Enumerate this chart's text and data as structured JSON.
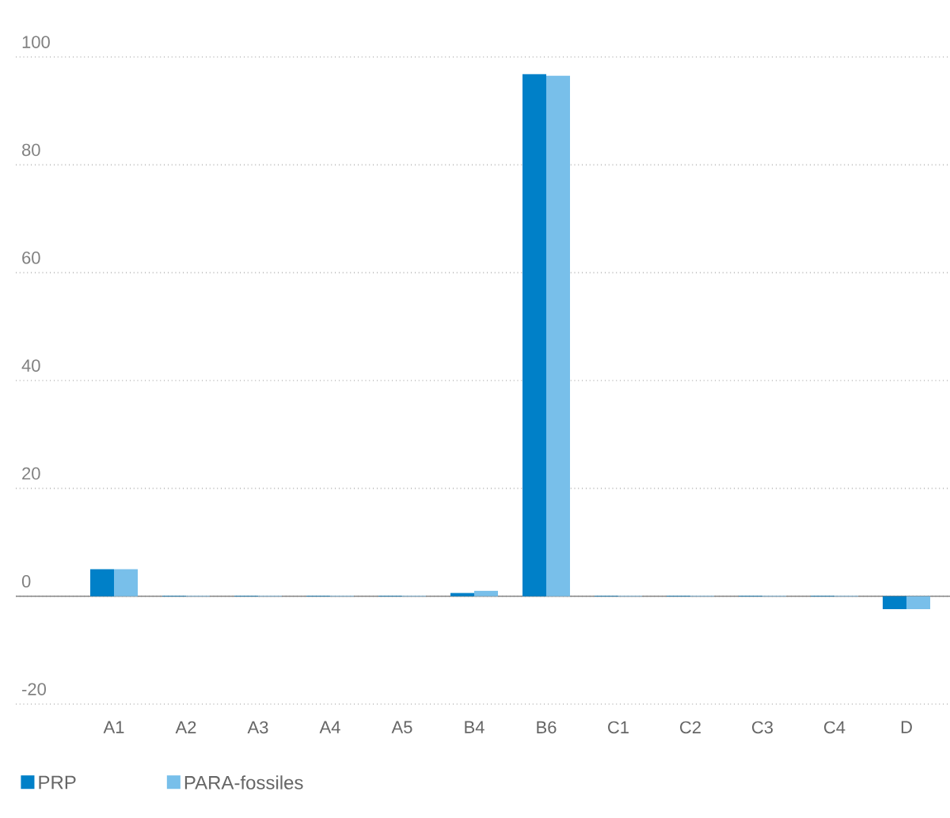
{
  "chart_data": {
    "type": "bar",
    "categories": [
      "A1",
      "A2",
      "A3",
      "A4",
      "A5",
      "B4",
      "B6",
      "C1",
      "C2",
      "C3",
      "C4",
      "D"
    ],
    "series": [
      {
        "name": "PRP",
        "color": "#0080c8",
        "values": [
          5,
          0.1,
          0.1,
          0.1,
          0.1,
          0.6,
          96.8,
          0.1,
          0.1,
          0.1,
          0.1,
          -2.4
        ]
      },
      {
        "name": "PARA-fossiles",
        "color": "#78bfea",
        "values": [
          5,
          0.1,
          0.1,
          0.1,
          0.1,
          1.0,
          96.5,
          0.1,
          0.1,
          0.1,
          0.1,
          -2.4
        ]
      }
    ],
    "ylim": [
      -20,
      100
    ],
    "yticks": [
      -20,
      0,
      20,
      40,
      60,
      80,
      100
    ],
    "grid": "y",
    "legend": "bottom"
  }
}
